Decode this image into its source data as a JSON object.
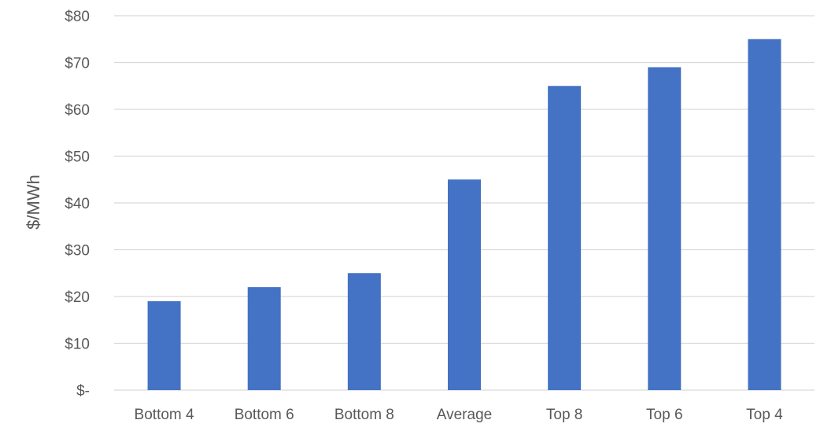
{
  "chart_data": {
    "type": "bar",
    "title": "",
    "xlabel": "",
    "ylabel": "$/MWh",
    "categories": [
      "Bottom 4",
      "Bottom 6",
      "Bottom 8",
      "Average",
      "Top 8",
      "Top 6",
      "Top 4"
    ],
    "series": [
      {
        "values": [
          19,
          22,
          25,
          45,
          65,
          69,
          75
        ],
        "color": "#4472c4"
      }
    ],
    "ylim": [
      0,
      80
    ],
    "yticks": [
      0,
      10,
      20,
      30,
      40,
      50,
      60,
      70,
      80
    ],
    "ytick_labels": [
      "$-",
      "$10",
      "$20",
      "$30",
      "$40",
      "$50",
      "$60",
      "$70",
      "$80"
    ],
    "grid": true,
    "legend": "none",
    "gridline_color": "#d9d9d9",
    "text_color": "#595959"
  }
}
